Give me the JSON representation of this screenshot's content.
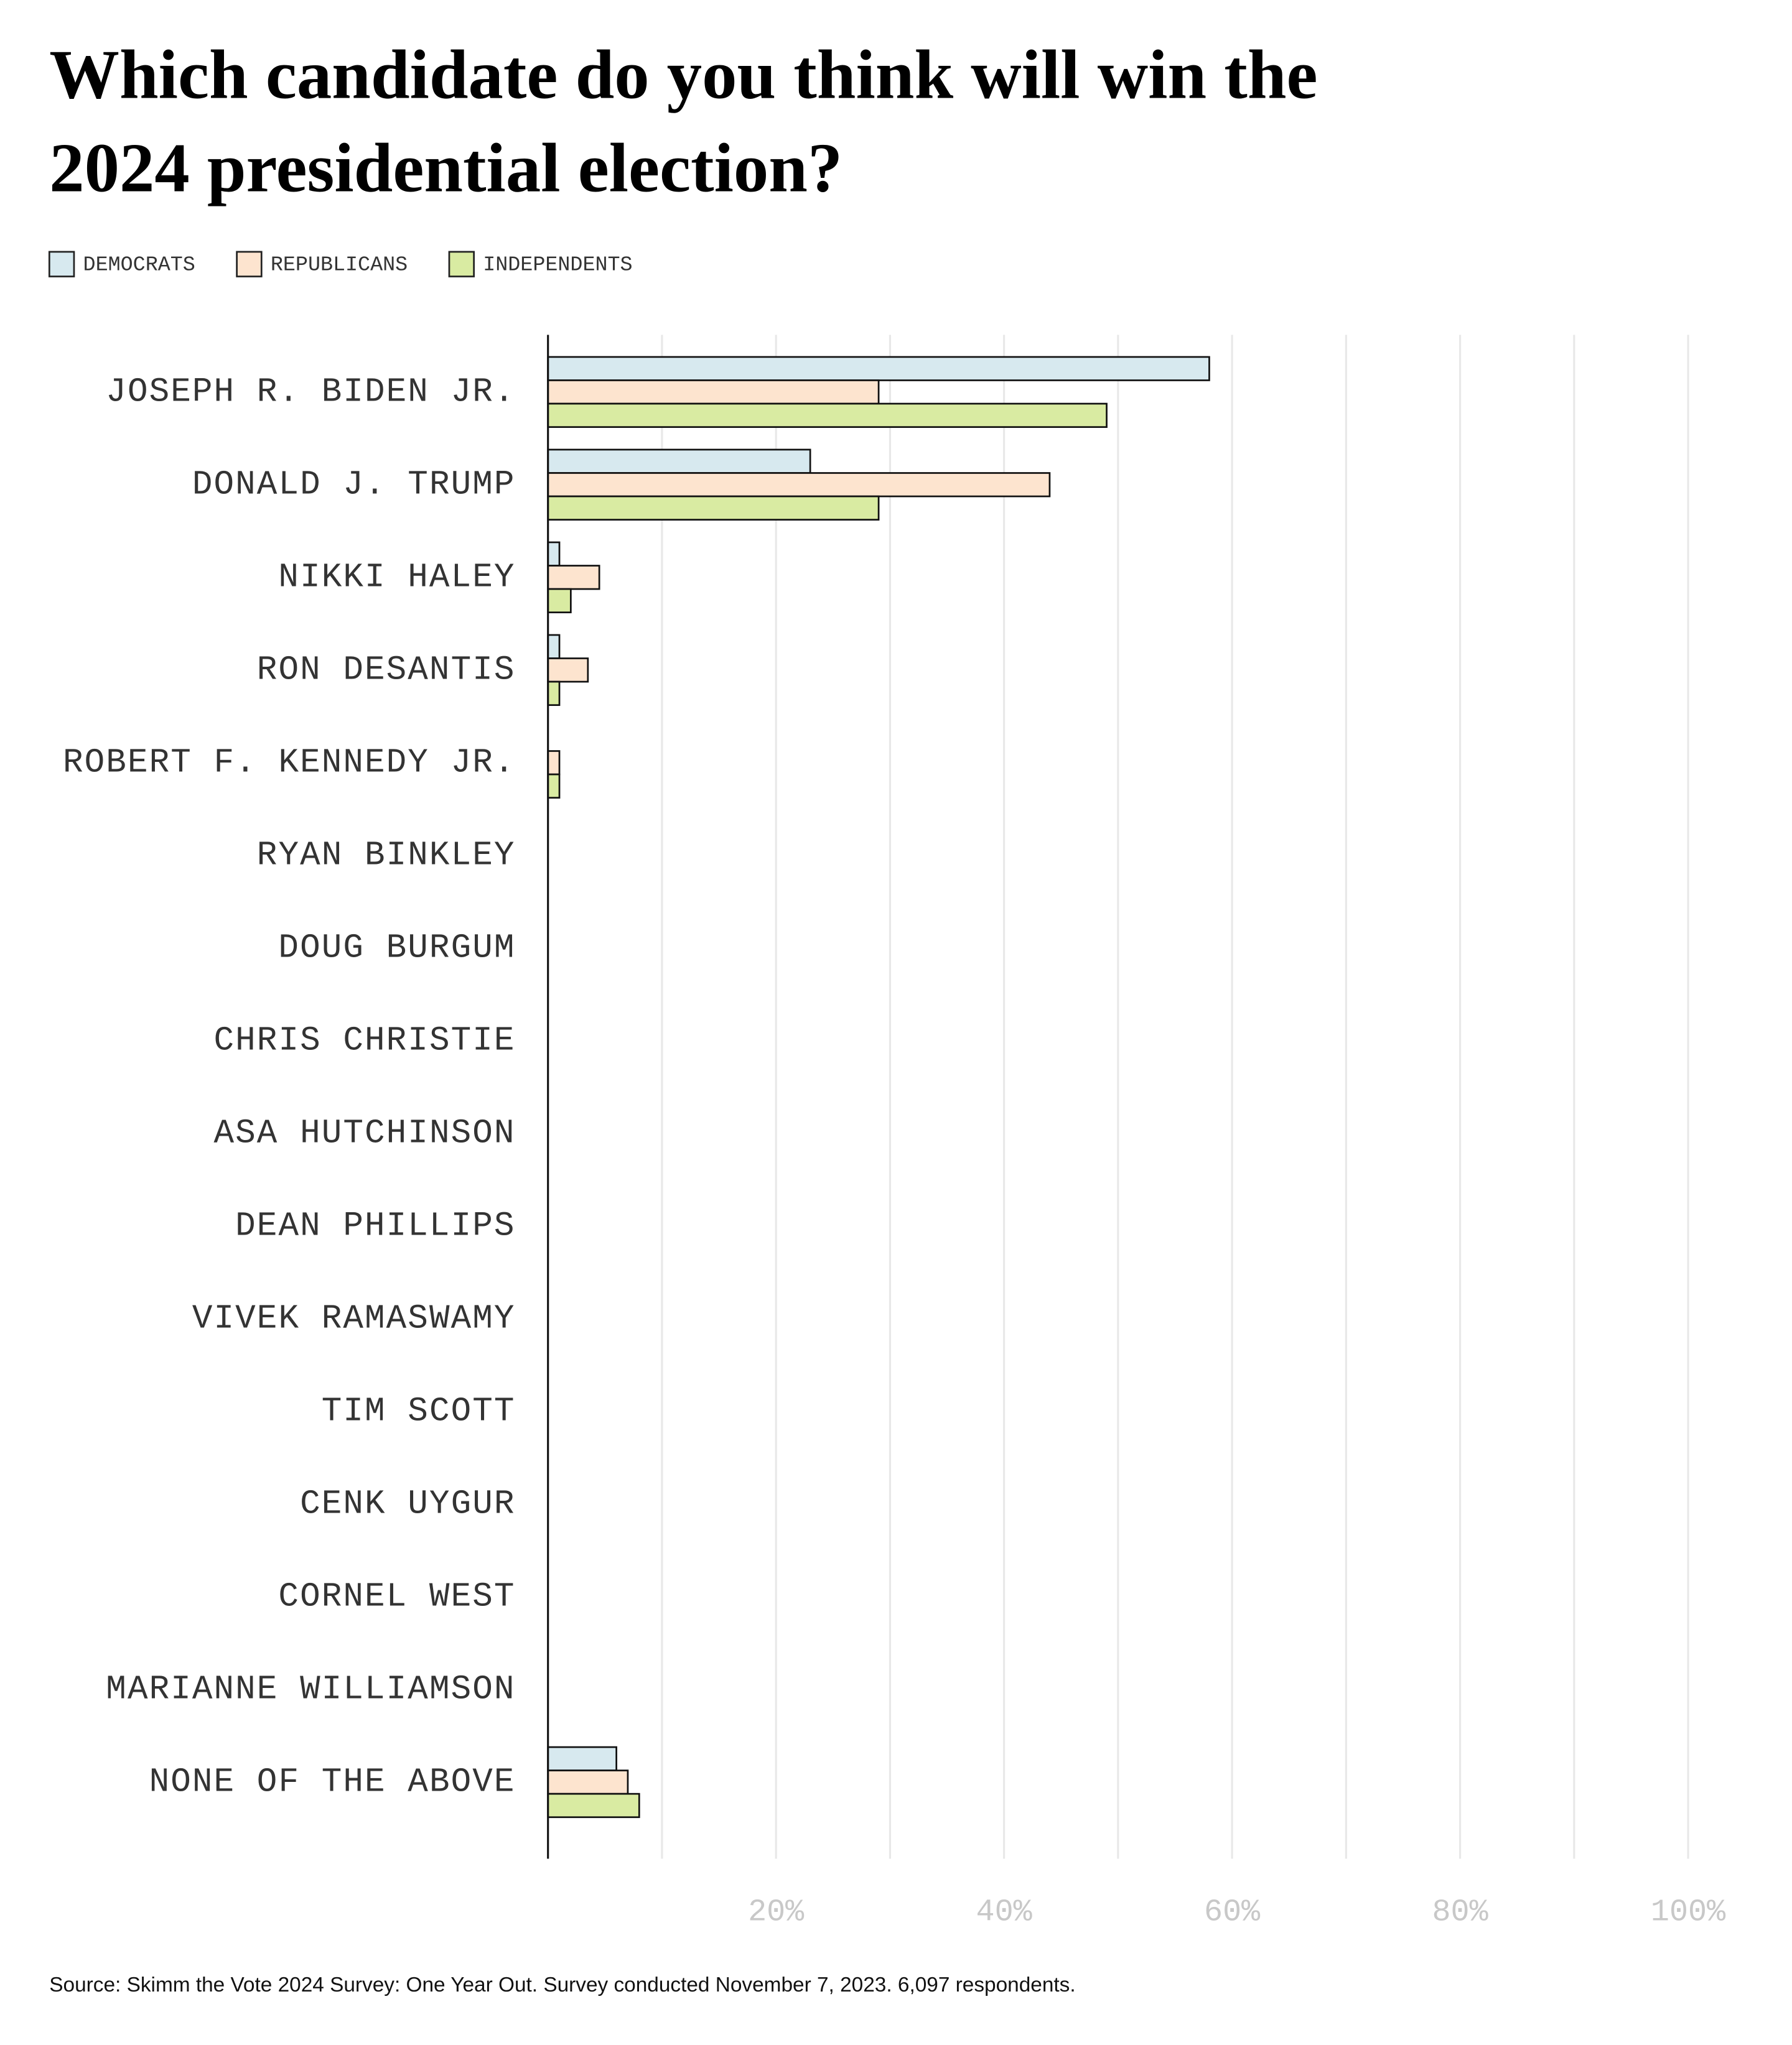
{
  "chart_data": {
    "type": "hbar",
    "title": [
      "Which candidate do you think will win the",
      "2024 presidential election?"
    ],
    "source": "Source: Skimm the Vote 2024 Survey: One Year Out. Survey conducted November 7, 2023. 6,097 respondents.",
    "categories": [
      "JOSEPH R. BIDEN JR.",
      "DONALD J. TRUMP",
      "NIKKI HALEY",
      "RON DESANTIS",
      "ROBERT F. KENNEDY JR.",
      "RYAN BINKLEY",
      "DOUG BURGUM",
      "CHRIS CHRISTIE",
      "ASA HUTCHINSON",
      "DEAN PHILLIPS",
      "VIVEK RAMASWAMY",
      "TIM SCOTT",
      "CENK UYGUR",
      "CORNEL WEST",
      "MARIANNE WILLIAMSON",
      "NONE OF THE ABOVE"
    ],
    "series": [
      {
        "name": "DEMOCRATS",
        "color": "#d7e9ef",
        "values": [
          58,
          23,
          1,
          1,
          0,
          0,
          0,
          0,
          0,
          0,
          0,
          0,
          0,
          0,
          0,
          6
        ]
      },
      {
        "name": "REPUBLICANS",
        "color": "#fde4cf",
        "values": [
          29,
          44,
          4.5,
          3.5,
          1,
          0,
          0,
          0,
          0,
          0,
          0,
          0,
          0,
          0,
          0,
          7
        ]
      },
      {
        "name": "INDEPENDENTS",
        "color": "#d9eba2",
        "values": [
          49,
          29,
          2,
          1,
          1,
          0,
          0,
          0,
          0,
          0,
          0,
          0,
          0,
          0,
          0,
          8
        ]
      }
    ],
    "xlim": [
      0,
      100
    ],
    "xticks": [
      {
        "value": 20,
        "label": "20%"
      },
      {
        "value": 40,
        "label": "40%"
      },
      {
        "value": 60,
        "label": "60%"
      },
      {
        "value": 80,
        "label": "80%"
      },
      {
        "value": 100,
        "label": "100%"
      }
    ],
    "minor_xticks": [
      10,
      30,
      50,
      70,
      90
    ],
    "grid": true
  }
}
